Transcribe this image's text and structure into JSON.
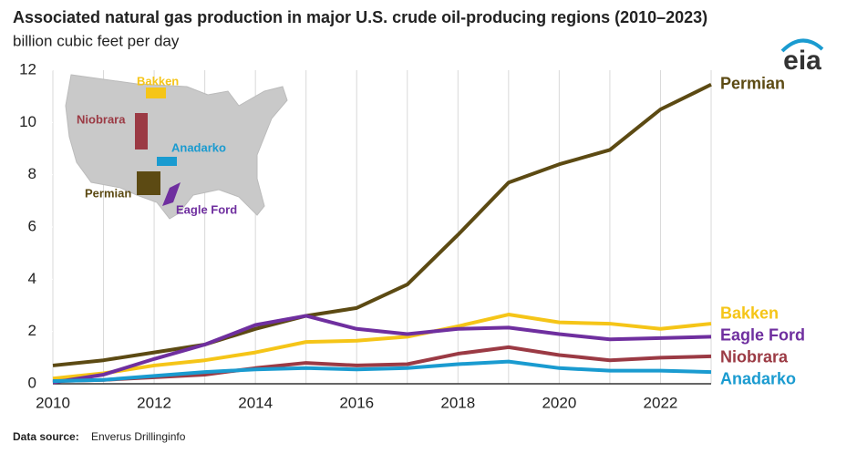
{
  "chart_data": {
    "type": "line",
    "title": "Associated natural gas production in major U.S. crude oil-producing regions (2010–2023)",
    "subtitle": "billion cubic feet per day",
    "logo": "eia",
    "source": {
      "label": "Data source:",
      "text": "Enverus Drillinginfo"
    },
    "map_labels": [
      "Bakken",
      "Niobrara",
      "Anadarko",
      "Permian",
      "Eagle Ford"
    ],
    "x": [
      2010,
      2011,
      2012,
      2013,
      2014,
      2015,
      2016,
      2017,
      2018,
      2019,
      2020,
      2021,
      2022,
      2023
    ],
    "xlim": [
      2010,
      2023
    ],
    "xticks": [
      2010,
      2012,
      2014,
      2016,
      2018,
      2020,
      2022
    ],
    "xminorticks": [
      2011,
      2013,
      2015,
      2017,
      2019,
      2021,
      2023
    ],
    "ylim": [
      0,
      12
    ],
    "yticks": [
      0,
      2,
      4,
      6,
      8,
      10,
      12
    ],
    "grid": "x",
    "series": [
      {
        "name": "Permian",
        "color": "#5c4a13",
        "values": [
          0.7,
          0.9,
          1.2,
          1.5,
          2.1,
          2.6,
          2.9,
          3.8,
          5.7,
          7.7,
          8.4,
          8.95,
          10.5,
          11.45
        ]
      },
      {
        "name": "Bakken",
        "color": "#f5c518",
        "values": [
          0.2,
          0.4,
          0.7,
          0.9,
          1.2,
          1.6,
          1.65,
          1.8,
          2.2,
          2.65,
          2.35,
          2.3,
          2.1,
          2.3
        ]
      },
      {
        "name": "Eagle Ford",
        "color": "#6f2f9f",
        "values": [
          0.05,
          0.35,
          0.95,
          1.5,
          2.25,
          2.6,
          2.1,
          1.9,
          2.1,
          2.15,
          1.9,
          1.7,
          1.75,
          1.8
        ]
      },
      {
        "name": "Niobrara",
        "color": "#9b3a44",
        "values": [
          0.1,
          0.15,
          0.25,
          0.35,
          0.6,
          0.8,
          0.7,
          0.75,
          1.15,
          1.4,
          1.1,
          0.9,
          1.0,
          1.05
        ]
      },
      {
        "name": "Anadarko",
        "color": "#1a9bd0",
        "values": [
          0.1,
          0.15,
          0.3,
          0.45,
          0.55,
          0.6,
          0.55,
          0.6,
          0.75,
          0.85,
          0.6,
          0.5,
          0.5,
          0.45
        ]
      }
    ]
  }
}
